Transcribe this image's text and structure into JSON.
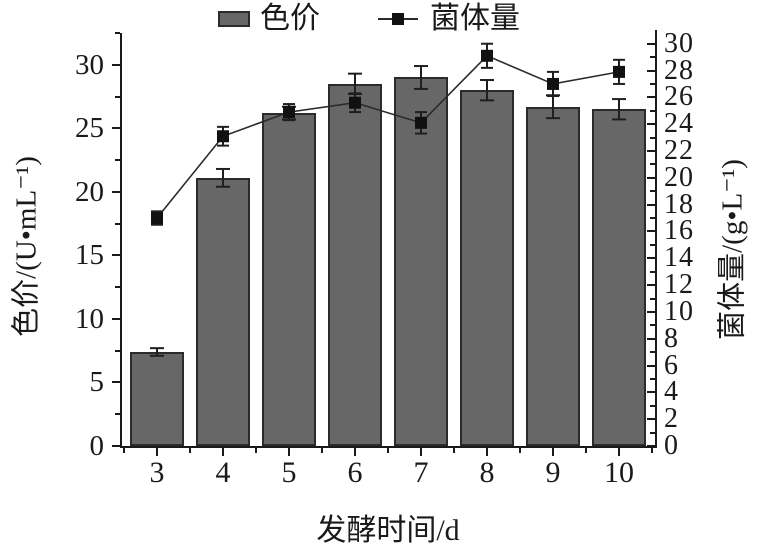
{
  "figure": {
    "legend": {
      "bar_label": "色价",
      "line_label": "菌体量"
    },
    "left_axis_title": "色价/(U•mL⁻¹)",
    "right_axis_title": "菌体量/(g•L⁻¹)",
    "x_axis_title": "发酵时间/d",
    "colors": {
      "background": "#ffffff",
      "bar_fill": "#676767",
      "bar_border": "#2b2b2b",
      "line": "#2b2b2b",
      "marker": "#111111",
      "error_bar": "#1f1f1f",
      "axis": "#1a1a1a",
      "text": "#1a1a1a"
    }
  },
  "chart_data": {
    "type": "bar",
    "title": "",
    "xlabel": "发酵时间/d",
    "categories": [
      3,
      4,
      5,
      6,
      7,
      8,
      9,
      10
    ],
    "grid": false,
    "legend_position": "top-center",
    "series": [
      {
        "name": "色价",
        "type": "bar",
        "axis": "left",
        "ylabel": "色价/(U•mL⁻¹)",
        "unit": "U/mL",
        "ylim": [
          0,
          32.5
        ],
        "yticks": [
          0,
          5,
          10,
          15,
          20,
          25,
          30
        ],
        "minor_step": 2.5,
        "values": [
          7.4,
          21.1,
          26.2,
          28.5,
          29.0,
          28.0,
          26.7,
          26.5
        ],
        "errors": [
          0.3,
          0.7,
          0.5,
          0.8,
          0.9,
          0.8,
          0.9,
          0.8
        ]
      },
      {
        "name": "菌体量",
        "type": "line",
        "axis": "right",
        "ylabel": "菌体量/(g•L⁻¹)",
        "unit": "g/L",
        "ylim": [
          0,
          30.8
        ],
        "yticks": [
          0,
          2,
          4,
          6,
          8,
          10,
          12,
          14,
          16,
          18,
          20,
          22,
          24,
          26,
          28,
          30
        ],
        "minor_step": 1,
        "values": [
          17.0,
          23.1,
          24.9,
          25.6,
          24.1,
          29.1,
          27.0,
          27.9
        ],
        "errors": [
          0.5,
          0.7,
          0.6,
          0.7,
          0.8,
          0.9,
          0.9,
          0.9
        ]
      }
    ]
  }
}
